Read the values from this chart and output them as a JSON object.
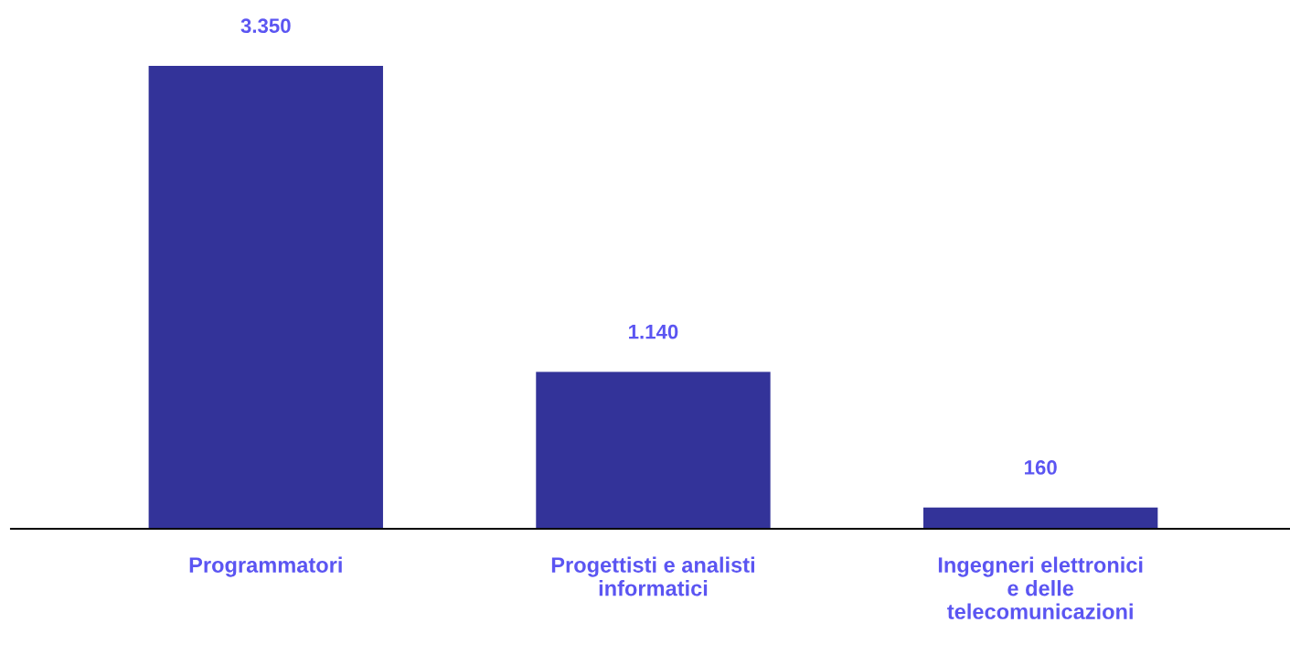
{
  "chart_data": {
    "type": "bar",
    "categories": [
      "Programmatori",
      "Progettisti e analisti\ninformatici",
      "Ingegneri elettronici\ne delle\ntelecomunicazioni"
    ],
    "values": [
      3350,
      1140,
      160
    ],
    "value_labels": [
      "3.350",
      "1.140",
      "160"
    ],
    "color": "#333399",
    "grid": false,
    "legend": false
  }
}
